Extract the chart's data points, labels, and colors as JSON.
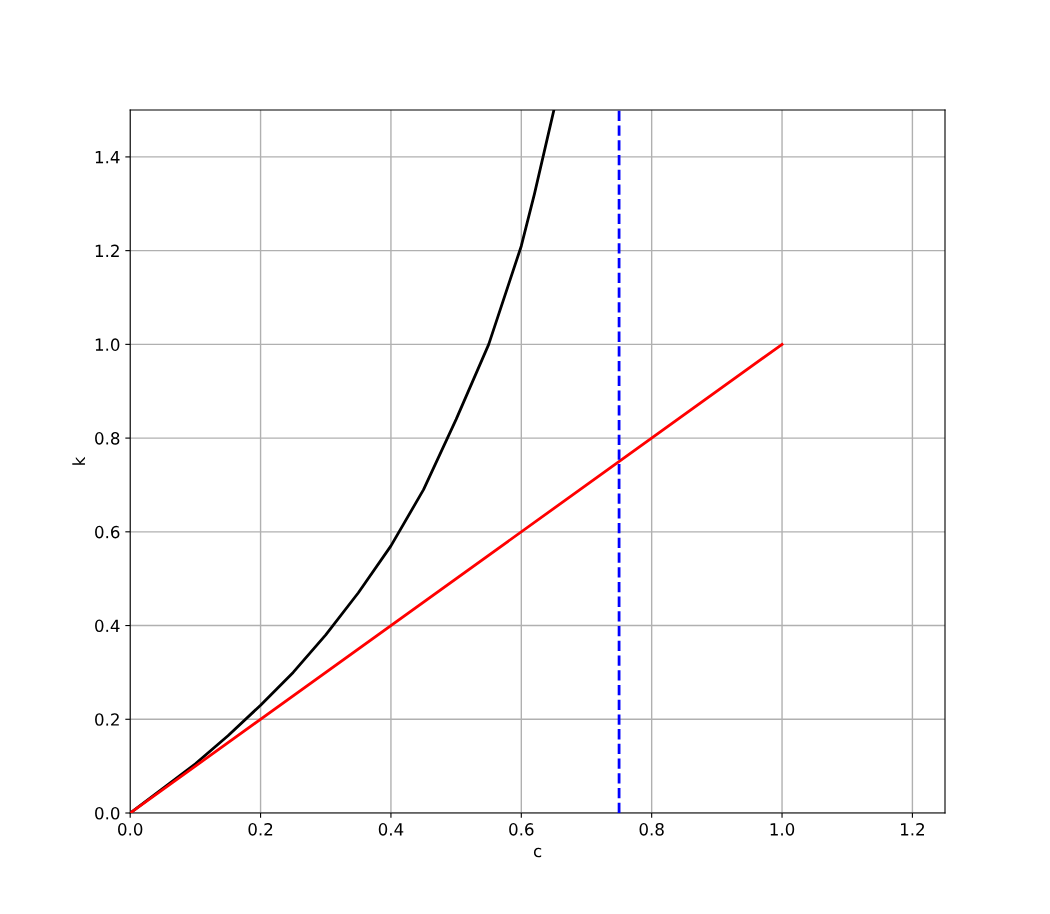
{
  "chart_data": {
    "type": "line",
    "xlabel": "c",
    "ylabel": "k",
    "series": [
      {
        "color": "#000000",
        "x": [
          0,
          0.1,
          0.15,
          0.2,
          0.25,
          0.3,
          0.35,
          0.4,
          0.45,
          0.5,
          0.55,
          0.6,
          0.62,
          0.64,
          0.65
        ],
        "values": [
          0,
          0.105,
          0.165,
          0.23,
          0.3,
          0.38,
          0.47,
          0.57,
          0.69,
          0.84,
          1.0,
          1.21,
          1.32,
          1.44,
          1.5
        ]
      },
      {
        "color": "#ff0000",
        "x": [
          0,
          1
        ],
        "values": [
          0,
          1
        ]
      }
    ],
    "ref_lines": [
      {
        "axis": "x",
        "value": 0.75,
        "color": "#0000ff",
        "line_style": "dashed"
      }
    ],
    "xlim": [
      0,
      1.25
    ],
    "xticks": [
      {
        "value": 0,
        "label": "0.0"
      },
      0.2,
      0.4,
      0.6,
      0.8,
      {
        "value": 1,
        "label": "1.0"
      },
      1.2
    ],
    "ylim": [
      0,
      1.5
    ],
    "yticks": [
      {
        "value": 0,
        "label": "0.0"
      },
      0.2,
      0.4,
      0.6,
      0.8,
      {
        "value": 1,
        "label": "1.0"
      },
      1.2,
      1.4
    ],
    "grid": true,
    "line_style": "solid",
    "marker": "none"
  }
}
